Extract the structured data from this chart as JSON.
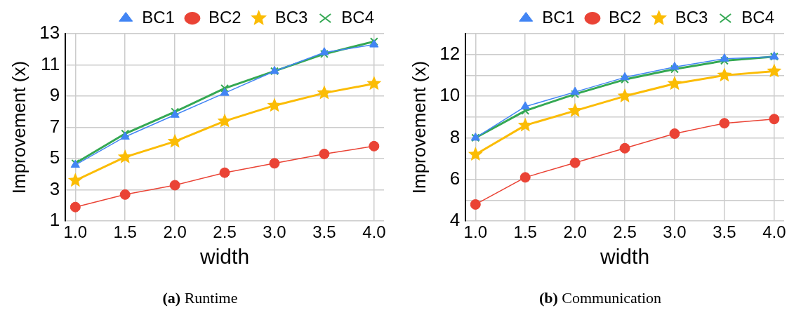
{
  "chart_data": [
    {
      "type": "line",
      "title": "(a) Runtime",
      "xlabel": "width",
      "ylabel": "Improvement (x)",
      "x": [
        1.0,
        1.5,
        2.0,
        2.5,
        3.0,
        3.5,
        4.0
      ],
      "xlim": [
        0.9,
        4.1
      ],
      "xticks": [
        {
          "value": 1,
          "label": "1.0"
        },
        {
          "value": 1.5,
          "label": "1.5"
        },
        {
          "value": 2,
          "label": "2.0"
        },
        {
          "value": 2.5,
          "label": "2.5"
        },
        {
          "value": 3,
          "label": "3.0"
        },
        {
          "value": 3.5,
          "label": "3.5"
        },
        {
          "value": 4,
          "label": "4.0"
        }
      ],
      "ylim": [
        1,
        13
      ],
      "yticks": [
        1,
        3,
        5,
        7,
        9,
        11,
        13
      ],
      "grid": true,
      "legend": "top",
      "series": [
        {
          "name": "BC1",
          "color": "#4285f4",
          "marker": "triangle",
          "values": [
            4.6,
            6.4,
            7.8,
            9.2,
            10.6,
            11.8,
            12.3
          ]
        },
        {
          "name": "BC2",
          "color": "#ea4335",
          "marker": "circle",
          "values": [
            1.9,
            2.7,
            3.3,
            4.1,
            4.7,
            5.3,
            5.8
          ]
        },
        {
          "name": "BC3",
          "color": "#fbbc04",
          "marker": "star",
          "values": [
            3.6,
            5.1,
            6.1,
            7.4,
            8.4,
            9.2,
            9.8
          ]
        },
        {
          "name": "BC4",
          "color": "#34a853",
          "marker": "cross",
          "values": [
            4.7,
            6.6,
            8.0,
            9.5,
            10.6,
            11.7,
            12.5
          ]
        }
      ]
    },
    {
      "type": "line",
      "title": "(b) Communication",
      "xlabel": "width",
      "ylabel": "Improvement (x)",
      "x": [
        1.0,
        1.5,
        2.0,
        2.5,
        3.0,
        3.5,
        4.0
      ],
      "xlim": [
        0.9,
        4.1
      ],
      "xticks": [
        {
          "value": 1,
          "label": "1.0"
        },
        {
          "value": 1.5,
          "label": "1.5"
        },
        {
          "value": 2,
          "label": "2.0"
        },
        {
          "value": 2.5,
          "label": "2.5"
        },
        {
          "value": 3,
          "label": "3.0"
        },
        {
          "value": 3.5,
          "label": "3.5"
        },
        {
          "value": 4,
          "label": "4.0"
        }
      ],
      "ylim": [
        4,
        13
      ],
      "yticks": [
        4,
        {
          "value": 5,
          "label": null
        },
        6,
        {
          "value": 7,
          "label": null
        },
        8,
        {
          "value": 9,
          "label": null
        },
        10,
        {
          "value": 11,
          "label": null
        },
        12,
        {
          "value": 13,
          "label": null
        }
      ],
      "grid": true,
      "legend": "top",
      "series": [
        {
          "name": "BC1",
          "color": "#4285f4",
          "marker": "triangle",
          "values": [
            8.0,
            9.5,
            10.2,
            10.9,
            11.4,
            11.8,
            11.9
          ]
        },
        {
          "name": "BC2",
          "color": "#ea4335",
          "marker": "circle",
          "values": [
            4.8,
            6.1,
            6.8,
            7.5,
            8.2,
            8.7,
            8.9
          ]
        },
        {
          "name": "BC3",
          "color": "#fbbc04",
          "marker": "star",
          "values": [
            7.2,
            8.6,
            9.3,
            10.0,
            10.6,
            11.0,
            11.2
          ]
        },
        {
          "name": "BC4",
          "color": "#34a853",
          "marker": "cross",
          "values": [
            8.0,
            9.3,
            10.1,
            10.8,
            11.3,
            11.7,
            11.9
          ]
        }
      ]
    }
  ]
}
